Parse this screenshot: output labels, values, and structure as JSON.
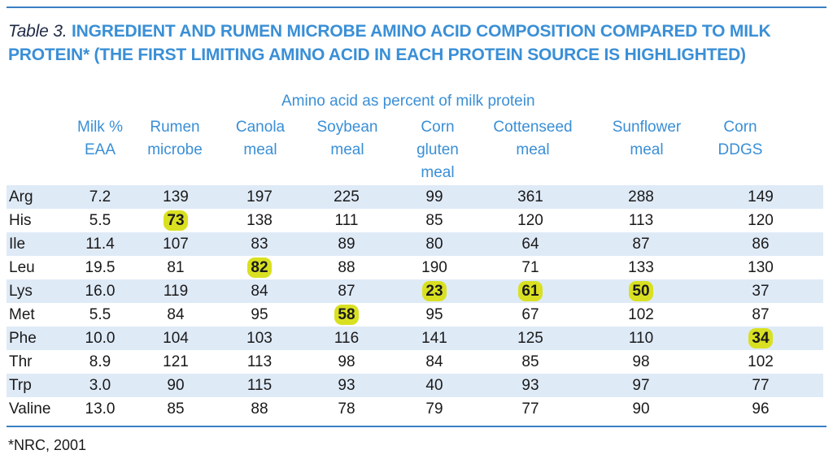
{
  "title": {
    "label": "Table 3.",
    "text": "INGREDIENT AND RUMEN MICROBE AMINO ACID COMPOSITION COMPARED TO MILK PROTEIN* (THE FIRST LIMITING AMINO ACID IN EACH PROTEIN SOURCE IS HIGHLIGHTED)"
  },
  "subheader": "Amino acid as percent of milk protein",
  "columns": [
    {
      "line1": "Milk %",
      "line2": "EAA",
      "line3": ""
    },
    {
      "line1": "Rumen",
      "line2": "microbe",
      "line3": ""
    },
    {
      "line1": "Canola",
      "line2": "meal",
      "line3": ""
    },
    {
      "line1": "Soybean",
      "line2": "meal",
      "line3": ""
    },
    {
      "line1": "Corn",
      "line2": "gluten",
      "line3": "meal"
    },
    {
      "line1": "Cottenseed",
      "line2": "meal",
      "line3": ""
    },
    {
      "line1": "Sunflower",
      "line2": "meal",
      "line3": ""
    },
    {
      "line1": "Corn",
      "line2": "DDGS",
      "line3": ""
    }
  ],
  "rows": [
    {
      "name": "Arg",
      "values": [
        "7.2",
        "139",
        "197",
        "225",
        "99",
        "361",
        "288",
        "149"
      ]
    },
    {
      "name": "His",
      "values": [
        "5.5",
        "73",
        "138",
        "111",
        "85",
        "120",
        "113",
        "120"
      ]
    },
    {
      "name": "Ile",
      "values": [
        "11.4",
        "107",
        "83",
        "89",
        "80",
        "64",
        "87",
        "86"
      ]
    },
    {
      "name": "Leu",
      "values": [
        "19.5",
        "81",
        "82",
        "88",
        "190",
        "71",
        "133",
        "130"
      ]
    },
    {
      "name": "Lys",
      "values": [
        "16.0",
        "119",
        "84",
        "87",
        "23",
        "61",
        "50",
        "37"
      ]
    },
    {
      "name": "Met",
      "values": [
        "5.5",
        "84",
        "95",
        "58",
        "95",
        "67",
        "102",
        "87"
      ]
    },
    {
      "name": "Phe",
      "values": [
        "10.0",
        "104",
        "103",
        "116",
        "141",
        "125",
        "110",
        "34"
      ]
    },
    {
      "name": "Thr",
      "values": [
        "8.9",
        "121",
        "113",
        "98",
        "84",
        "85",
        "98",
        "102"
      ]
    },
    {
      "name": "Trp",
      "values": [
        "3.0",
        "90",
        "115",
        "93",
        "40",
        "93",
        "97",
        "77"
      ]
    },
    {
      "name": "Valine",
      "values": [
        "13.0",
        "85",
        "88",
        "78",
        "79",
        "77",
        "90",
        "96"
      ]
    }
  ],
  "highlights": [
    [
      1,
      1
    ],
    [
      3,
      2
    ],
    [
      5,
      3
    ],
    [
      4,
      4
    ],
    [
      4,
      5
    ],
    [
      4,
      6
    ],
    [
      6,
      7
    ]
  ],
  "highlight_color": "#d9e021",
  "stripe_color": "#dfeaf7",
  "accent_color": "#3a8fd6",
  "footnote": "*NRC, 2001"
}
